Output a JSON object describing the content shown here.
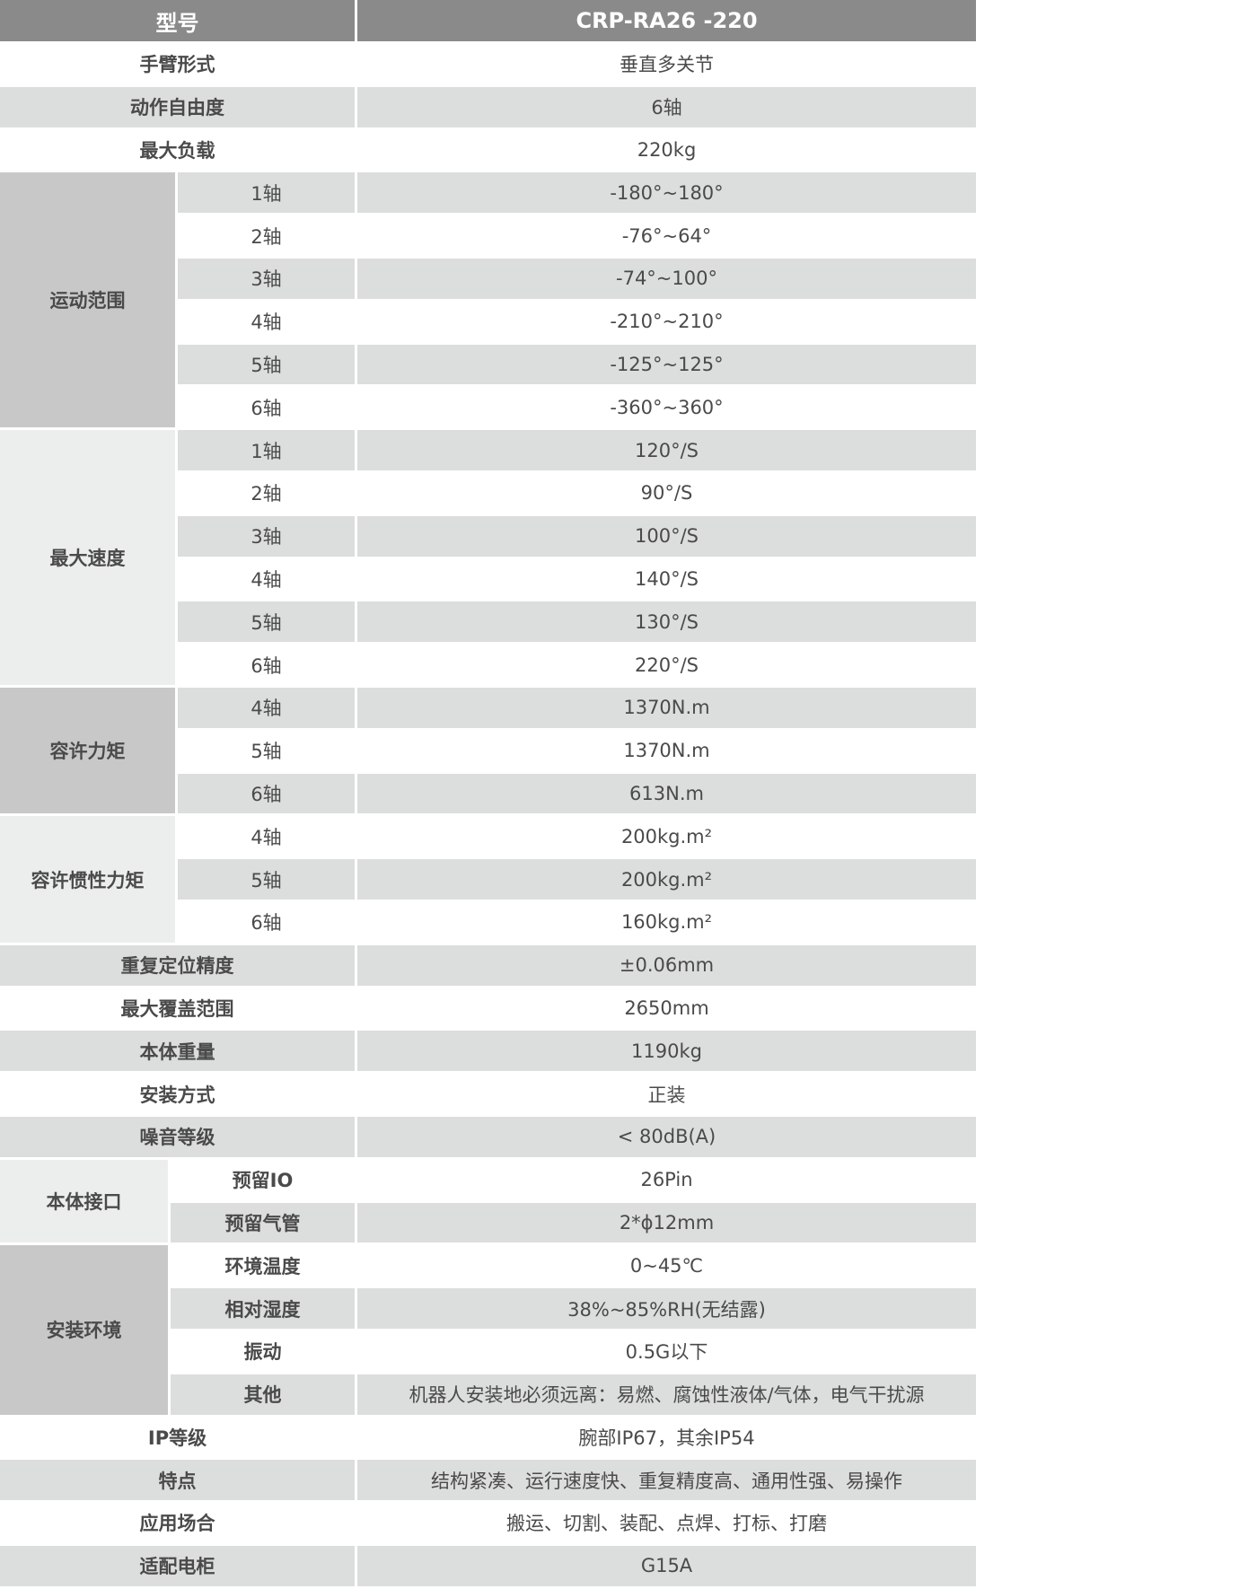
{
  "header": {
    "label": "型号",
    "model": "CRP-RA26 -220"
  },
  "colors": {
    "header": "#8a8a8a",
    "row_shaded": "#dcdddd",
    "group_dark": "#c8c8c8",
    "group_light": "#eceeed",
    "text": "#4a4a4a"
  },
  "rows": [
    {
      "label": "手臂形式",
      "value": "垂直多关节"
    },
    {
      "label": "动作自由度",
      "value": "6轴"
    },
    {
      "label": "最大负载",
      "value": "220kg"
    },
    {
      "group": "运动范围",
      "tone": "dark",
      "items": [
        {
          "label": "1轴",
          "value": "-180°~180°"
        },
        {
          "label": "2轴",
          "value": "-76°~64°"
        },
        {
          "label": "3轴",
          "value": "-74°~100°"
        },
        {
          "label": "4轴",
          "value": "-210°~210°"
        },
        {
          "label": "5轴",
          "value": "-125°~125°"
        },
        {
          "label": "6轴",
          "value": "-360°~360°"
        }
      ]
    },
    {
      "group": "最大速度",
      "tone": "light",
      "items": [
        {
          "label": "1轴",
          "value": "120°/S"
        },
        {
          "label": "2轴",
          "value": "90°/S"
        },
        {
          "label": "3轴",
          "value": "100°/S"
        },
        {
          "label": "4轴",
          "value": "140°/S"
        },
        {
          "label": "5轴",
          "value": "130°/S"
        },
        {
          "label": "6轴",
          "value": "220°/S"
        }
      ]
    },
    {
      "group": "容许力矩",
      "tone": "dark",
      "items": [
        {
          "label": "4轴",
          "value": "1370N.m"
        },
        {
          "label": "5轴",
          "value": "1370N.m"
        },
        {
          "label": "6轴",
          "value": "613N.m"
        }
      ]
    },
    {
      "group": "容许惯性力矩",
      "tone": "light",
      "items": [
        {
          "label": "4轴",
          "value": "200kg.m²"
        },
        {
          "label": "5轴",
          "value": "200kg.m²"
        },
        {
          "label": "6轴",
          "value": "160kg.m²"
        }
      ]
    },
    {
      "label": "重复定位精度",
      "value": "±0.06mm"
    },
    {
      "label": "最大覆盖范围",
      "value": "2650mm"
    },
    {
      "label": "本体重量",
      "value": "1190kg"
    },
    {
      "label": "安装方式",
      "value": "正装"
    },
    {
      "label": "噪音等级",
      "value": "< 80dB(A)"
    },
    {
      "group": "本体接口",
      "tone": "light",
      "narrow": true,
      "items": [
        {
          "label": "预留IO",
          "value": "26Pin"
        },
        {
          "label": "预留气管",
          "value": "2*ϕ12mm"
        }
      ]
    },
    {
      "group": "安装环境",
      "tone": "dark",
      "narrow": true,
      "items": [
        {
          "label": "环境温度",
          "value": "0~45℃"
        },
        {
          "label": "相对湿度",
          "value": "38%~85%RH(无结露)"
        },
        {
          "label": "振动",
          "value": "0.5G以下"
        },
        {
          "label": "其他",
          "value": "机器人安装地必须远离：易燃、腐蚀性液体/气体，电气干扰源"
        }
      ]
    },
    {
      "label": "IP等级",
      "value": "腕部IP67，其余IP54"
    },
    {
      "label": "特点",
      "value": "结构紧凑、运行速度快、重复精度高、通用性强、易操作"
    },
    {
      "label": "应用场合",
      "value": "搬运、切割、装配、点焊、打标、打磨"
    },
    {
      "label": "适配电柜",
      "value": "G15A"
    }
  ]
}
